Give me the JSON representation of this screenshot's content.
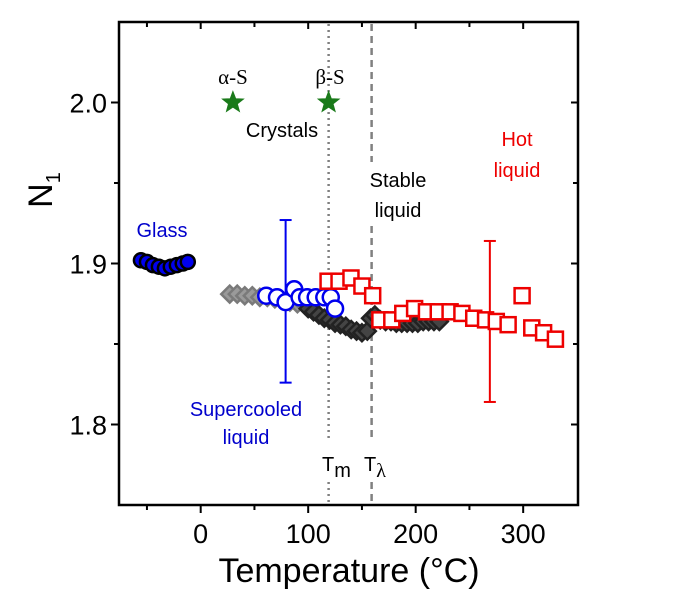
{
  "chart_data": {
    "type": "scatter",
    "title": "",
    "xlabel": "Temperature (°C)",
    "ylabel_main": "N",
    "ylabel_sub": "1",
    "xlim": [
      -76,
      351
    ],
    "ylim": [
      1.75,
      2.05
    ],
    "xticks": [
      0,
      100,
      200,
      300
    ],
    "xtick_labels": [
      "0",
      "100",
      "200",
      "300"
    ],
    "xminor": [
      -50,
      50,
      150,
      250
    ],
    "yticks": [
      1.8,
      1.9,
      2.0
    ],
    "ytick_labels": [
      "1.8",
      "1.9",
      "2.0"
    ],
    "yminor": [
      1.85,
      1.95
    ],
    "grid": false,
    "colors": {
      "glass": "#0000ee",
      "supercooled": "#0000ee",
      "hot": "#ee0000",
      "crystal": "#1a7a1a",
      "gray_diamond": "#7a7a7a",
      "black_diamond": "#222222",
      "vline": "#808080"
    },
    "series": [
      {
        "name": "Glass",
        "marker": "filled-circle",
        "x": [
          -55.6,
          -50,
          -44.4,
          -38.9,
          -33.3,
          -27.8,
          -22.2,
          -16.7,
          -12
        ],
        "y": [
          1.902,
          1.901,
          1.899,
          1.898,
          1.897,
          1.898,
          1.899,
          1.9,
          1.901
        ]
      },
      {
        "name": "Gray diamonds",
        "marker": "gray-diamond",
        "x": [
          27,
          34,
          41,
          48,
          55,
          62,
          69,
          76,
          83,
          90,
          97
        ],
        "y": [
          1.881,
          1.881,
          1.88,
          1.88,
          1.879,
          1.879,
          1.878,
          1.877,
          1.876,
          1.875,
          1.874
        ]
      },
      {
        "name": "Black diamonds",
        "marker": "black-diamond",
        "x": [
          100,
          105,
          110,
          115,
          120,
          125,
          130,
          135,
          140,
          145,
          150,
          155,
          158,
          162,
          167,
          172,
          177,
          182,
          187,
          192,
          197,
          202,
          207,
          212,
          217,
          222
        ],
        "y": [
          1.872,
          1.87,
          1.868,
          1.866,
          1.865,
          1.863,
          1.862,
          1.861,
          1.859,
          1.858,
          1.857,
          1.858,
          1.866,
          1.868,
          1.865,
          1.864,
          1.864,
          1.863,
          1.863,
          1.863,
          1.863,
          1.863,
          1.864,
          1.864,
          1.864,
          1.864
        ]
      },
      {
        "name": "Supercooled liquid",
        "marker": "open-circle",
        "x": [
          61,
          71,
          79,
          87,
          92,
          99,
          107,
          115,
          121,
          125
        ],
        "y": [
          1.88,
          1.879,
          1.876,
          1.884,
          1.879,
          1.879,
          1.879,
          1.879,
          1.879,
          1.872
        ]
      },
      {
        "name": "Hot liquid",
        "marker": "open-square",
        "x": [
          118.5,
          128.7,
          139.8,
          150,
          160,
          166.7,
          177.8,
          188,
          199,
          210,
          221,
          232,
          243,
          254,
          265,
          275,
          286,
          299,
          308,
          319,
          330
        ],
        "y": [
          1.889,
          1.889,
          1.891,
          1.886,
          1.88,
          1.865,
          1.865,
          1.869,
          1.872,
          1.87,
          1.87,
          1.87,
          1.869,
          1.866,
          1.865,
          1.864,
          1.862,
          1.88,
          1.86,
          1.857,
          1.853
        ]
      },
      {
        "name": "Crystals",
        "marker": "star",
        "x": [
          30,
          119
        ],
        "y": [
          2.0,
          2.0
        ]
      }
    ],
    "error_bars": [
      {
        "series": "Supercooled liquid",
        "x": 79,
        "y_low": 1.826,
        "y_high": 1.927
      },
      {
        "series": "Hot liquid",
        "x": 269,
        "y_low": 1.814,
        "y_high": 1.914
      }
    ],
    "vlines": [
      {
        "x": 119,
        "style": "dotted",
        "label_main": "T",
        "label_sub": "m"
      },
      {
        "x": 159,
        "style": "dashed",
        "label_main": "T",
        "label_sub": "λ"
      }
    ],
    "annotations": {
      "alpha": "α-S",
      "beta": "β-S",
      "crystals": "Crystals",
      "glass": "Glass",
      "supercooled_1": "Supercooled",
      "supercooled_2": "liquid",
      "stable_1": "Stable",
      "stable_2": "liquid",
      "hot_1": "Hot",
      "hot_2": "liquid"
    }
  }
}
